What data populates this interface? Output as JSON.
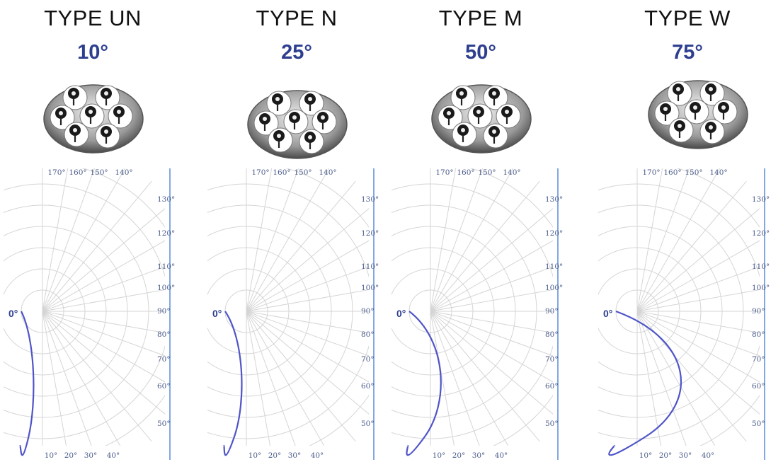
{
  "panels": [
    {
      "type_label": "TYPE UN",
      "angle_label": "10°",
      "curve_spread": 0.06
    },
    {
      "type_label": "TYPE N",
      "angle_label": "25°",
      "curve_spread": 0.1
    },
    {
      "type_label": "TYPE M",
      "angle_label": "50°",
      "curve_spread": 0.24
    },
    {
      "type_label": "TYPE W",
      "angle_label": "75°",
      "curve_spread": 0.55
    }
  ],
  "top_ticks": [
    "170°",
    "160°",
    "150°",
    "140°"
  ],
  "right_ticks": [
    "130°",
    "120°",
    "110°",
    "100°",
    "90°",
    "80°",
    "70°",
    "60°",
    "50°"
  ],
  "bottom_ticks": [
    "10°",
    "20°",
    "30°",
    "40°"
  ],
  "zero_label": "0°",
  "colors": {
    "curve": "#4f55c8",
    "grid": "#d5d5d5",
    "angle_text": "#2e3f8f",
    "axis_line": "#2f6fd0"
  }
}
